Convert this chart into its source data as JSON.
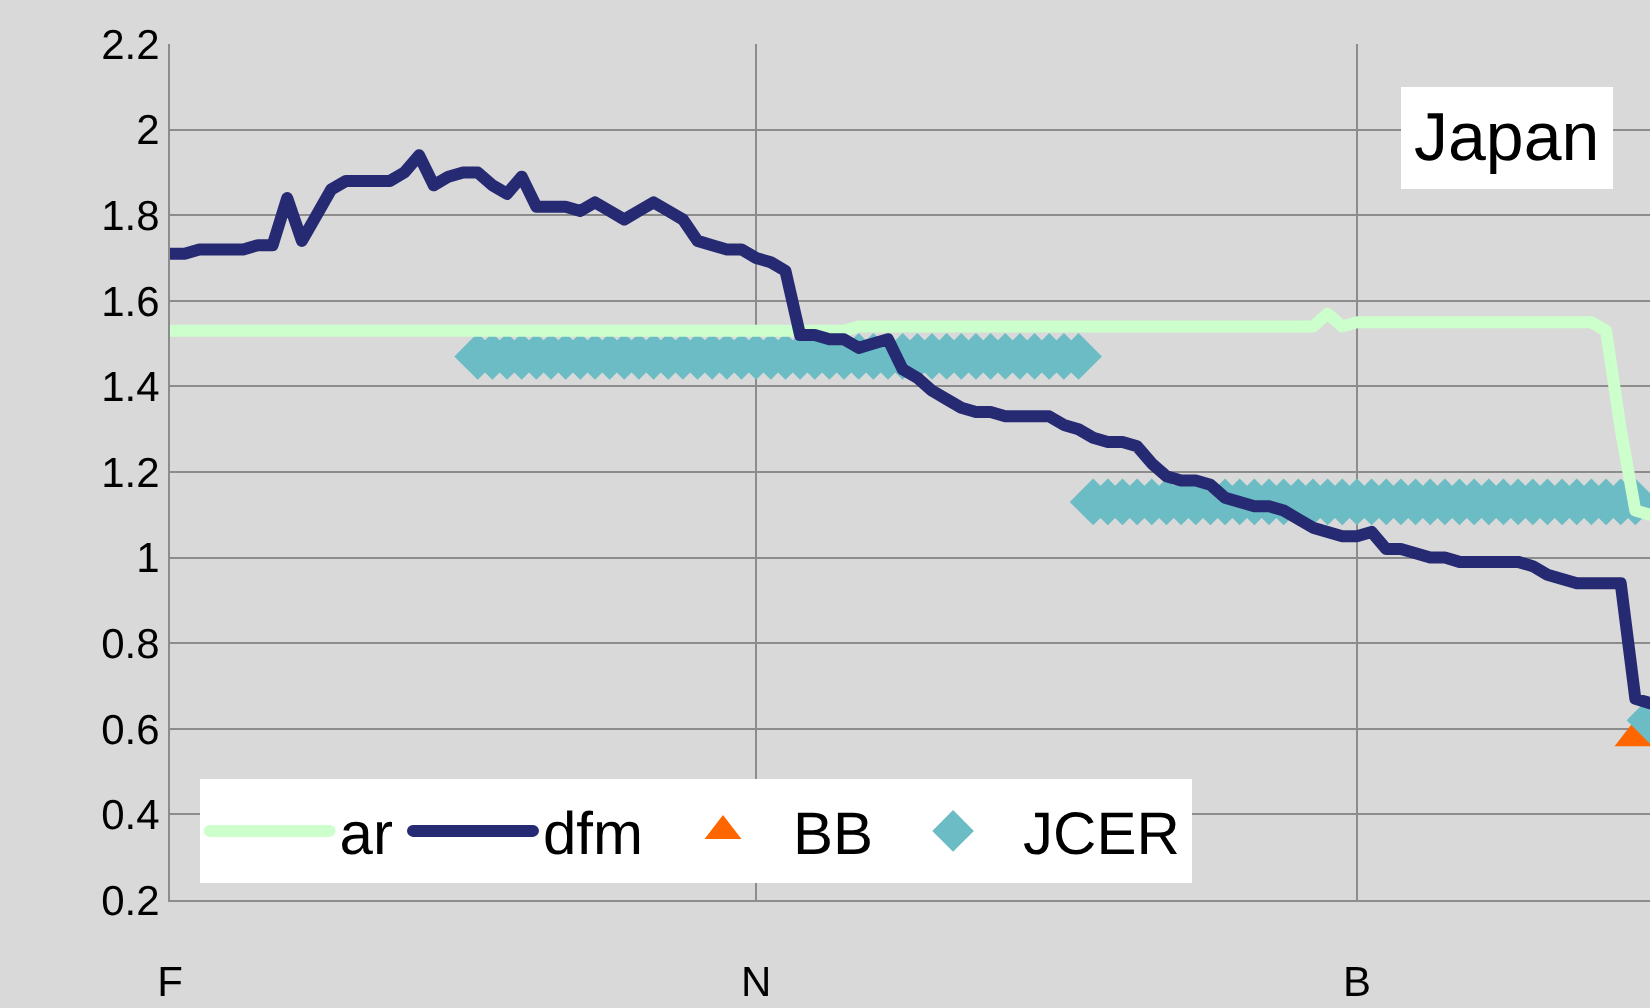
{
  "chart_data": {
    "type": "line",
    "annotations": [
      "Japan"
    ],
    "categories": [
      "F",
      null,
      null,
      null,
      null,
      null,
      null,
      null,
      null,
      null,
      null,
      null,
      null,
      null,
      null,
      null,
      null,
      null,
      null,
      null,
      null,
      null,
      null,
      null,
      null,
      null,
      null,
      null,
      null,
      null,
      null,
      null,
      null,
      null,
      null,
      null,
      null,
      null,
      null,
      null,
      "N",
      null,
      null,
      null,
      null,
      null,
      null,
      null,
      null,
      null,
      null,
      null,
      null,
      null,
      null,
      null,
      null,
      null,
      null,
      null,
      null,
      null,
      null,
      null,
      null,
      null,
      null,
      null,
      null,
      null,
      null,
      null,
      null,
      null,
      null,
      null,
      null,
      null,
      null,
      null,
      null,
      "B",
      null,
      null,
      null,
      null,
      null,
      null,
      null,
      null,
      null,
      null,
      null,
      null,
      null,
      null,
      null,
      null,
      null,
      null,
      null,
      null
    ],
    "ylim": [
      0.2,
      2.2
    ],
    "yticks": [
      0.2,
      0.4,
      0.6,
      0.8,
      1,
      1.2,
      1.4,
      1.6,
      1.8,
      2,
      2.2
    ],
    "grid": true,
    "legend": "bottom left",
    "series": [
      {
        "name": "ar",
        "marker": "none",
        "color": "#ccffcc",
        "values": [
          1.53,
          1.53,
          1.53,
          1.53,
          1.53,
          1.53,
          1.53,
          1.53,
          1.53,
          1.53,
          1.53,
          1.53,
          1.53,
          1.53,
          1.53,
          1.53,
          1.53,
          1.53,
          1.53,
          1.53,
          1.53,
          1.53,
          1.53,
          1.53,
          1.53,
          1.53,
          1.53,
          1.53,
          1.53,
          1.53,
          1.53,
          1.53,
          1.53,
          1.53,
          1.53,
          1.53,
          1.53,
          1.53,
          1.53,
          1.53,
          1.53,
          1.53,
          1.53,
          1.53,
          1.53,
          1.53,
          1.53,
          1.54,
          1.54,
          1.54,
          1.54,
          1.54,
          1.54,
          1.54,
          1.54,
          1.54,
          1.54,
          1.54,
          1.54,
          1.54,
          1.54,
          1.54,
          1.54,
          1.54,
          1.54,
          1.54,
          1.54,
          1.54,
          1.54,
          1.54,
          1.54,
          1.54,
          1.54,
          1.54,
          1.54,
          1.54,
          1.54,
          1.54,
          1.54,
          1.57,
          1.54,
          1.55,
          1.55,
          1.55,
          1.55,
          1.55,
          1.55,
          1.55,
          1.55,
          1.55,
          1.55,
          1.55,
          1.55,
          1.55,
          1.55,
          1.55,
          1.55,
          1.55,
          1.53,
          1.3,
          1.11,
          1.1
        ]
      },
      {
        "name": "dfm",
        "marker": "none",
        "color": "#262a72",
        "values": [
          1.71,
          1.71,
          1.72,
          1.72,
          1.72,
          1.72,
          1.73,
          1.73,
          1.84,
          1.74,
          1.8,
          1.86,
          1.88,
          1.88,
          1.88,
          1.88,
          1.9,
          1.94,
          1.87,
          1.89,
          1.9,
          1.9,
          1.87,
          1.85,
          1.89,
          1.82,
          1.82,
          1.82,
          1.81,
          1.83,
          1.81,
          1.79,
          1.81,
          1.83,
          1.81,
          1.79,
          1.74,
          1.73,
          1.72,
          1.72,
          1.7,
          1.69,
          1.67,
          1.52,
          1.52,
          1.51,
          1.51,
          1.49,
          1.5,
          1.51,
          1.44,
          1.42,
          1.39,
          1.37,
          1.35,
          1.34,
          1.34,
          1.33,
          1.33,
          1.33,
          1.33,
          1.31,
          1.3,
          1.28,
          1.27,
          1.27,
          1.26,
          1.22,
          1.19,
          1.18,
          1.18,
          1.17,
          1.14,
          1.13,
          1.12,
          1.12,
          1.11,
          1.09,
          1.07,
          1.06,
          1.05,
          1.05,
          1.06,
          1.02,
          1.02,
          1.01,
          1,
          1,
          0.99,
          0.99,
          0.99,
          0.99,
          0.99,
          0.98,
          0.96,
          0.95,
          0.94,
          0.94,
          0.94,
          0.94,
          0.67,
          0.66
        ]
      },
      {
        "name": "BB",
        "type": "scatter",
        "marker": "triangle",
        "color": "#ff6600",
        "values": [
          null,
          null,
          null,
          null,
          null,
          null,
          null,
          null,
          null,
          null,
          null,
          null,
          null,
          null,
          null,
          null,
          null,
          null,
          null,
          null,
          null,
          null,
          null,
          null,
          null,
          null,
          null,
          null,
          null,
          null,
          null,
          null,
          null,
          null,
          null,
          null,
          null,
          null,
          null,
          null,
          null,
          null,
          null,
          null,
          null,
          null,
          null,
          null,
          null,
          null,
          null,
          null,
          null,
          null,
          null,
          null,
          null,
          null,
          null,
          null,
          null,
          null,
          null,
          null,
          null,
          null,
          null,
          null,
          null,
          null,
          null,
          null,
          null,
          null,
          null,
          null,
          null,
          null,
          null,
          null,
          null,
          null,
          null,
          null,
          null,
          null,
          null,
          null,
          null,
          null,
          null,
          null,
          null,
          null,
          null,
          null,
          null,
          null,
          null,
          null,
          0.58,
          null
        ]
      },
      {
        "name": "JCER",
        "type": "scatter",
        "marker": "diamond",
        "color": "#6bbcc4",
        "values": [
          null,
          null,
          null,
          null,
          null,
          null,
          null,
          null,
          null,
          null,
          null,
          null,
          null,
          null,
          null,
          null,
          null,
          null,
          null,
          null,
          null,
          1.47,
          1.47,
          1.47,
          1.47,
          1.47,
          1.47,
          1.47,
          1.47,
          1.47,
          1.47,
          1.47,
          1.47,
          1.47,
          1.47,
          1.47,
          1.47,
          1.47,
          1.47,
          1.47,
          1.47,
          1.47,
          1.47,
          1.47,
          1.47,
          1.47,
          1.47,
          1.47,
          1.47,
          1.47,
          1.47,
          1.47,
          1.47,
          1.47,
          1.47,
          1.47,
          1.47,
          1.47,
          1.47,
          1.47,
          1.47,
          1.47,
          1.47,
          1.13,
          1.13,
          1.13,
          1.13,
          1.13,
          1.13,
          1.13,
          1.13,
          1.13,
          1.13,
          1.13,
          1.13,
          1.13,
          1.13,
          1.13,
          1.13,
          1.13,
          1.13,
          1.13,
          1.13,
          1.13,
          1.13,
          1.13,
          1.13,
          1.13,
          1.13,
          1.13,
          1.13,
          1.13,
          1.13,
          1.13,
          1.13,
          1.13,
          1.13,
          1.13,
          1.13,
          1.13,
          1.13,
          0.62
        ]
      }
    ]
  }
}
